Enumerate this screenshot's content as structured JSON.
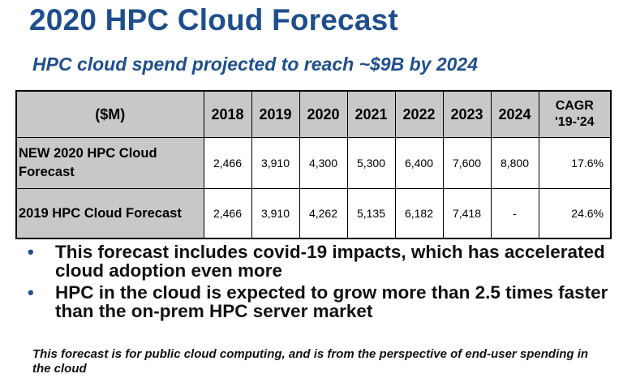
{
  "title": "2020 HPC Cloud Forecast",
  "subtitle": "HPC cloud spend projected to reach ~$9B by 2024",
  "table": {
    "header_unit": "($M)",
    "years": [
      "2018",
      "2019",
      "2020",
      "2021",
      "2022",
      "2023",
      "2024"
    ],
    "cagr_header": "CAGR '19-'24",
    "rows": [
      {
        "label": "NEW 2020 HPC Cloud Forecast",
        "values": [
          "2,466",
          "3,910",
          "4,300",
          "5,300",
          "6,400",
          "7,600",
          "8,800"
        ],
        "cagr": "17.6%"
      },
      {
        "label": "2019 HPC Cloud Forecast",
        "values": [
          "2,466",
          "3,910",
          "4,262",
          "5,135",
          "6,182",
          "7,418",
          "-"
        ],
        "cagr": "24.6%"
      }
    ]
  },
  "bullets": [
    "This forecast includes covid-19 impacts, which has accelerated cloud adoption even more",
    "HPC in the cloud is expected to grow more than 2.5 times faster than the on-prem HPC server market"
  ],
  "bullet_symbol": "•",
  "footnote": "This forecast is for public cloud computing, and is from the perspective of end-user spending in the cloud",
  "colors": {
    "title": "#1f4e8c",
    "table_header_bg": "#c8c8c8"
  }
}
